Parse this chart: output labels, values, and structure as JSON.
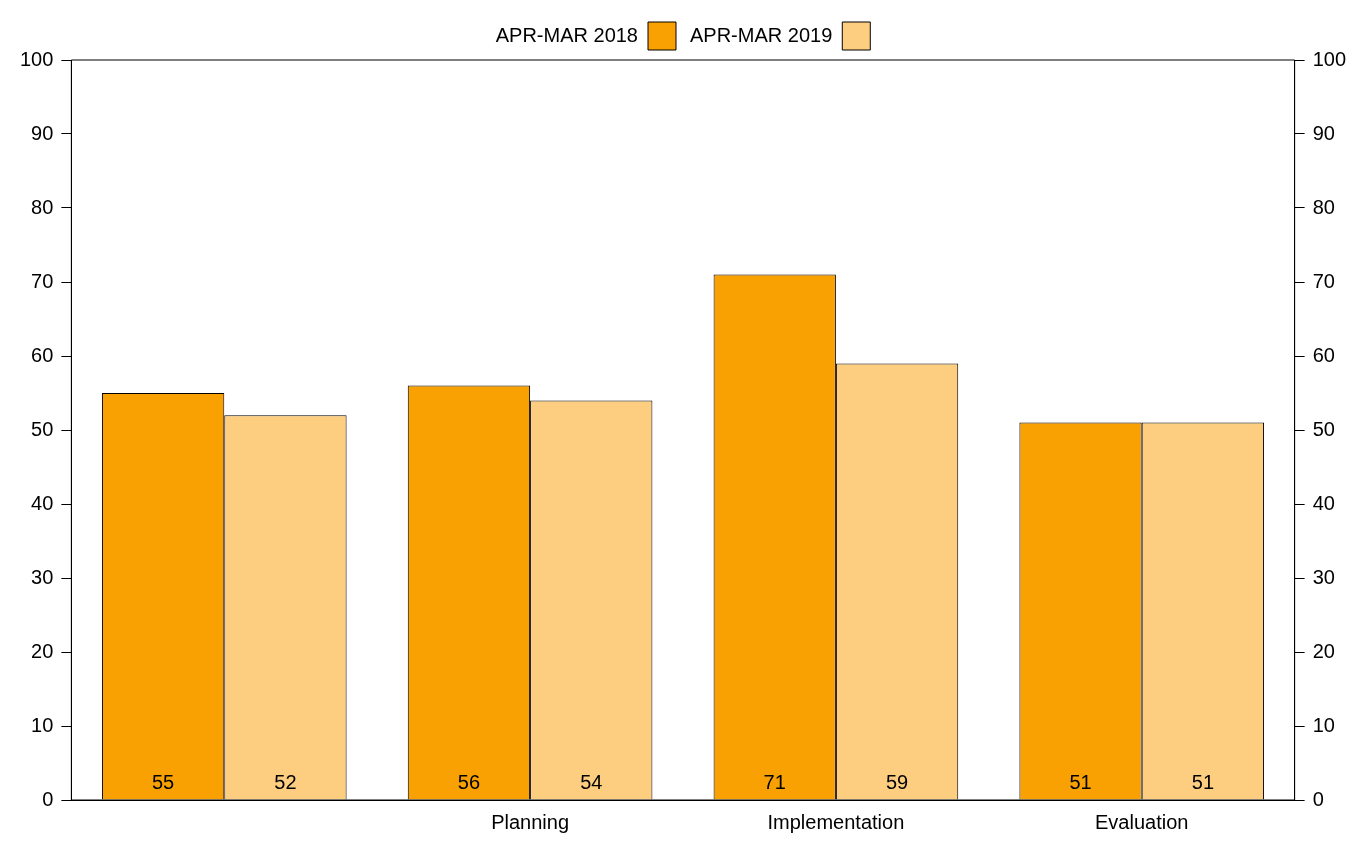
{
  "chart_data": {
    "type": "bar",
    "categories": [
      null,
      "Planning",
      "Implementation",
      "Evaluation"
    ],
    "series": [
      {
        "name": "APR-MAR 2018",
        "color": "#f9a102",
        "values": [
          55,
          56,
          71,
          51
        ]
      },
      {
        "name": "APR-MAR 2019",
        "color": "#fdce80",
        "values": [
          52,
          54,
          59,
          51
        ]
      }
    ],
    "ylim": [
      0,
      100
    ],
    "yticks": [
      0,
      10,
      20,
      30,
      40,
      50,
      60,
      70,
      80,
      90,
      100
    ],
    "y2lim": [
      0,
      100
    ],
    "y2ticks": [
      0,
      10,
      20,
      30,
      40,
      50,
      60,
      70,
      80,
      90,
      100
    ],
    "data_labels": true,
    "legend": "top",
    "grid": false
  }
}
